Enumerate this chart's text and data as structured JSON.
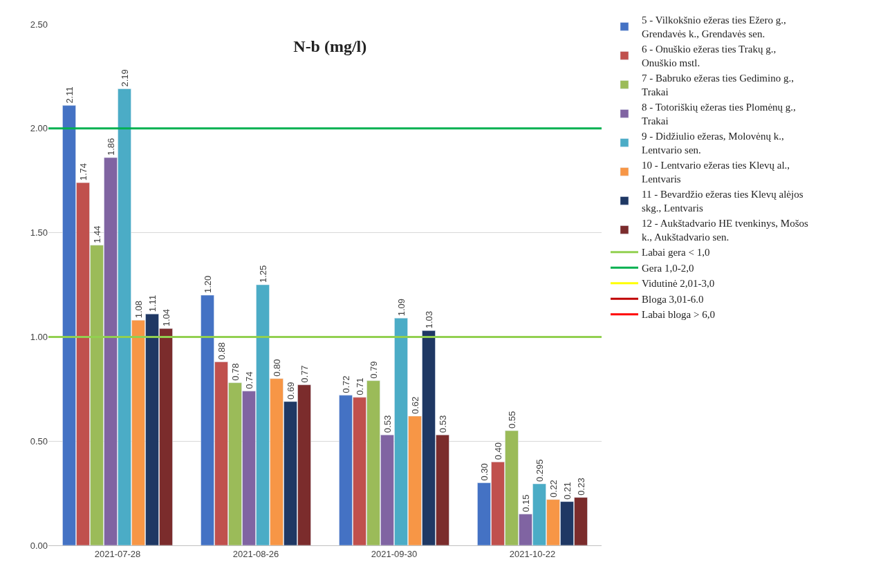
{
  "chart_data": {
    "type": "bar",
    "title": "N-b (mg/l)",
    "categories": [
      "2021-07-28",
      "2021-08-26",
      "2021-09-30",
      "2021-10-22"
    ],
    "series": [
      {
        "name": "5 - Vilkokšnio ežeras ties Ežero g., Grendavės k., Grendavės sen.",
        "color": "#4472c4",
        "values": [
          2.11,
          1.2,
          0.72,
          0.3
        ],
        "value_labels": [
          "2.11",
          "1.20",
          "0.72",
          "0.30"
        ]
      },
      {
        "name": "6 - Onuškio ežeras ties Trakų g., Onuškio mstl.",
        "color": "#c0504d",
        "values": [
          1.74,
          0.88,
          0.71,
          0.4
        ],
        "value_labels": [
          "1.74",
          "0.88",
          "0.71",
          "0.40"
        ]
      },
      {
        "name": "7 - Babruko ežeras ties Gedimino g., Trakai",
        "color": "#9bbb59",
        "values": [
          1.44,
          0.78,
          0.79,
          0.55
        ],
        "value_labels": [
          "1.44",
          "0.78",
          "0.79",
          "0.55"
        ]
      },
      {
        "name": "8 - Totoriškių ežeras ties Plomėnų g., Trakai",
        "color": "#8064a2",
        "values": [
          1.86,
          0.74,
          0.53,
          0.15
        ],
        "value_labels": [
          "1.86",
          "0.74",
          "0.53",
          "0.15"
        ]
      },
      {
        "name": "9 - Didžiulio ežeras, Molovėnų k., Lentvario sen.",
        "color": "#4bacc6",
        "values": [
          2.19,
          1.25,
          1.09,
          0.295
        ],
        "value_labels": [
          "2.19",
          "1.25",
          "1.09",
          "0.295"
        ]
      },
      {
        "name": "10 - Lentvario ežeras ties Klevų al., Lentvaris",
        "color": "#f79646",
        "values": [
          1.08,
          0.8,
          0.62,
          0.22
        ],
        "value_labels": [
          "1.08",
          "0.80",
          "0.62",
          "0.22"
        ]
      },
      {
        "name": "11 - Bevardžio ežeras ties Klevų alėjos skg., Lentvaris",
        "color": "#1f3864",
        "values": [
          1.11,
          0.69,
          1.03,
          0.21
        ],
        "value_labels": [
          "1.11",
          "0.69",
          "1.03",
          "0.21"
        ]
      },
      {
        "name": "12 - Aukštadvario HE tvenkinys, Mošos k., Aukštadvario sen.",
        "color": "#7b2c2c",
        "values": [
          1.04,
          0.77,
          0.53,
          0.23
        ],
        "value_labels": [
          "1.04",
          "0.77",
          "0.53",
          "0.23"
        ]
      },
      {
        "name": "Vidutinė 2,01-3,0",
        "type": "line",
        "color": "#ffff00",
        "values": [
          null,
          null,
          null,
          null
        ]
      },
      {
        "name": "Bloga 3,01-6.0",
        "type": "line",
        "color": "#c00000",
        "values": [
          null,
          null,
          null,
          null
        ]
      },
      {
        "name": "Labai bloga > 6,0",
        "type": "line",
        "color": "#ff0000",
        "values": [
          null,
          null,
          null,
          null
        ]
      }
    ],
    "ref_lines": [
      {
        "axis": "y",
        "value": 1.0,
        "label": "Labai gera < 1,0",
        "color": "#92d050"
      },
      {
        "axis": "y",
        "value": 2.0,
        "label": "Gera 1,0-2,0",
        "color": "#00b050"
      }
    ],
    "ylim": [
      0,
      2.5
    ],
    "yticks": [
      {
        "value": 0,
        "label": "0.00"
      },
      {
        "value": 0.5,
        "label": "0.50"
      },
      {
        "value": 1.0,
        "label": "1.00"
      },
      {
        "value": 1.5,
        "label": "1.50"
      },
      {
        "value": 2.0,
        "label": "2.00"
      },
      {
        "value": 2.5,
        "label": "2.50"
      }
    ],
    "grid": "y",
    "legend": "right"
  }
}
